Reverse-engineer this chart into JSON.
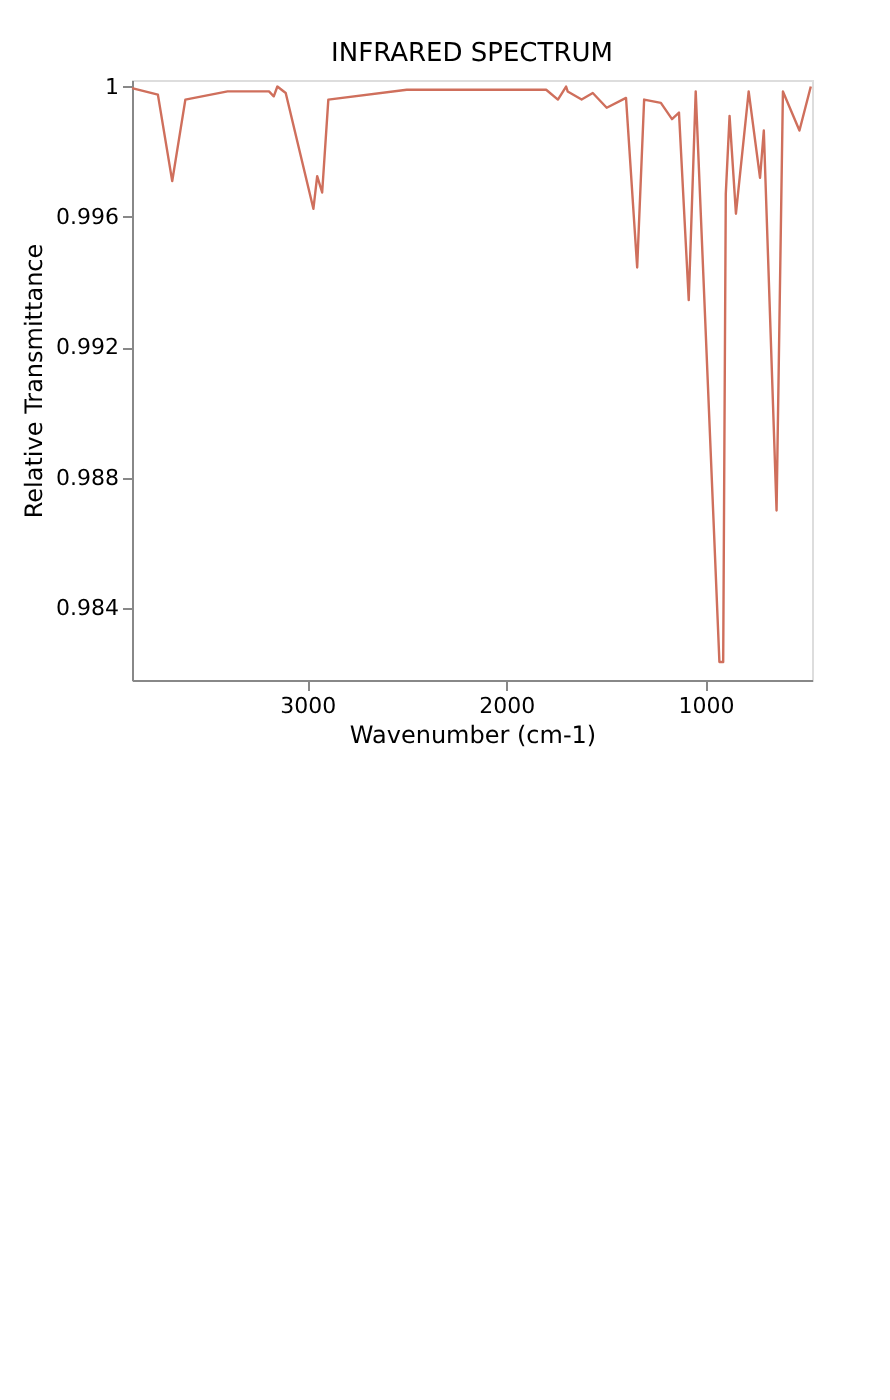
{
  "chart_data": {
    "type": "line",
    "title": "INFRARED SPECTRUM",
    "xlabel": "Wavenumber (cm-1)",
    "ylabel": "Relative Transmittance",
    "x": [
      3880,
      3750,
      3678,
      3612,
      3400,
      3192,
      3168,
      3150,
      3108,
      2969,
      2950,
      2925,
      2894,
      2500,
      2000,
      1800,
      1741,
      1700,
      1692,
      1622,
      1566,
      1496,
      1399,
      1343,
      1308,
      1224,
      1168,
      1133,
      1084,
      1049,
      930,
      911,
      898,
      879,
      847,
      783,
      726,
      707,
      643,
      611,
      528,
      471
    ],
    "series": [
      {
        "color": "#cf6f5c",
        "values": [
          0.99995,
          0.99975,
          0.9971,
          0.9996,
          0.99985,
          0.99985,
          0.9997,
          1.0,
          0.9998,
          0.99625,
          0.99725,
          0.99675,
          0.9996,
          0.9999,
          0.9999,
          0.9999,
          0.9996,
          1.0,
          0.99985,
          0.9996,
          0.9998,
          0.99935,
          0.99965,
          0.99445,
          0.9996,
          0.9995,
          0.999,
          0.9992,
          0.99345,
          0.99985,
          0.98235,
          0.98235,
          0.9967,
          0.9991,
          0.9961,
          0.99985,
          0.9972,
          0.99865,
          0.987,
          0.99985,
          0.99865,
          1.0
        ]
      }
    ],
    "xlim": [
      3880,
      465
    ],
    "xticks": [
      3000,
      2000,
      1000
    ],
    "ylim": [
      0.9818,
      1.0002
    ],
    "yticks": [
      0.984,
      0.988,
      0.992,
      0.996,
      1
    ],
    "grid": false,
    "marker": "none",
    "line_style": "solid"
  }
}
